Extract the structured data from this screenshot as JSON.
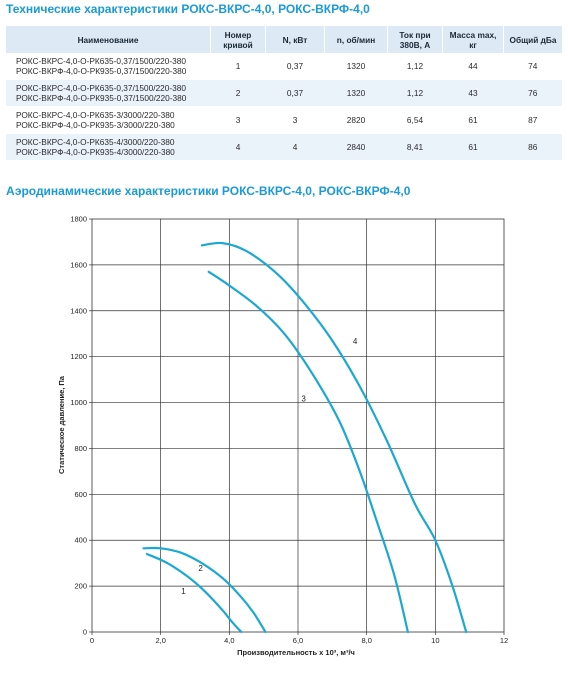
{
  "tech_title": "Технические характеристики РОКС-ВКРС-4,0, РОКС-ВКРФ-4,0",
  "table": {
    "headers": [
      {
        "l1": "Наименование",
        "l2": ""
      },
      {
        "l1": "Номер",
        "l2": "кривой"
      },
      {
        "l1": "N, кВт",
        "l2": ""
      },
      {
        "l1": "n, об/мин",
        "l2": ""
      },
      {
        "l1": "Ток при",
        "l2": "380В, А"
      },
      {
        "l1": "Масса max,",
        "l2": "кг"
      },
      {
        "l1": "Общий дБа",
        "l2": ""
      }
    ],
    "rows": [
      {
        "name1": "РОКС-ВКРС-4,0-О-РК635-0,37/1500/220-380",
        "name2": "РОКС-ВКРФ-4,0-О-РК935-0,37/1500/220-380",
        "curve": "1",
        "power": "0,37",
        "rpm": "1320",
        "current": "1,12",
        "mass": "44",
        "noise": "74"
      },
      {
        "name1": "РОКС-ВКРС-4,0-О-РК635-0,37/1500/220-380",
        "name2": "РОКС-ВКРФ-4,0-О-РК935-0,37/1500/220-380",
        "curve": "2",
        "power": "0,37",
        "rpm": "1320",
        "current": "1,12",
        "mass": "43",
        "noise": "76"
      },
      {
        "name1": "РОКС-ВКРС-4,0-О-РК635-3/3000/220-380",
        "name2": "РОКС-ВКРФ-4,0-О-РК935-3/3000/220-380",
        "curve": "3",
        "power": "3",
        "rpm": "2820",
        "current": "6,54",
        "mass": "61",
        "noise": "87"
      },
      {
        "name1": "РОКС-ВКРС-4,0-О-РК635-4/3000/220-380",
        "name2": "РОКС-ВКРФ-4,0-О-РК935-4/3000/220-380",
        "curve": "4",
        "power": "4",
        "rpm": "2840",
        "current": "8,41",
        "mass": "61",
        "noise": "86"
      }
    ]
  },
  "chart_data": {
    "type": "line",
    "title": "Аэродинамические характеристики РОКС-ВКРС-4,0, РОКС-ВКРФ-4,0",
    "xlabel": "Производительность х 10³, м³/ч",
    "ylabel": "Статическое давление, Па",
    "xlim": [
      0,
      12
    ],
    "ylim": [
      0,
      1800
    ],
    "xticks": [
      0,
      2,
      4,
      6,
      8,
      10,
      12
    ],
    "xtick_labels": [
      "0",
      "2,0",
      "4,0",
      "6,0",
      "8,0",
      "10",
      "12"
    ],
    "yticks": [
      0,
      200,
      400,
      600,
      800,
      1000,
      1200,
      1400,
      1600,
      1800
    ],
    "ytick_labels": [
      "0",
      "200",
      "400",
      "600",
      "800",
      "1000",
      "1200",
      "1400",
      "1600",
      "1800"
    ],
    "grid": true,
    "line_color": "#1ba8d2",
    "series": [
      {
        "name": "1",
        "label_at": [
          2.6,
          165
        ],
        "points": [
          [
            1.6,
            340
          ],
          [
            2.2,
            300
          ],
          [
            2.8,
            240
          ],
          [
            3.3,
            175
          ],
          [
            3.8,
            95
          ],
          [
            4.1,
            40
          ],
          [
            4.35,
            0
          ]
        ]
      },
      {
        "name": "2",
        "label_at": [
          3.1,
          265
        ],
        "points": [
          [
            1.5,
            365
          ],
          [
            2.0,
            365
          ],
          [
            2.6,
            345
          ],
          [
            3.2,
            300
          ],
          [
            3.8,
            235
          ],
          [
            4.3,
            160
          ],
          [
            4.7,
            85
          ],
          [
            5.05,
            0
          ]
        ]
      },
      {
        "name": "3",
        "label_at": [
          6.1,
          1005
        ],
        "points": [
          [
            3.4,
            1570
          ],
          [
            4.0,
            1510
          ],
          [
            4.8,
            1420
          ],
          [
            5.6,
            1300
          ],
          [
            6.4,
            1130
          ],
          [
            7.2,
            920
          ],
          [
            7.8,
            700
          ],
          [
            8.3,
            480
          ],
          [
            8.8,
            250
          ],
          [
            9.2,
            0
          ]
        ]
      },
      {
        "name": "4",
        "label_at": [
          7.6,
          1255
        ],
        "points": [
          [
            3.2,
            1685
          ],
          [
            3.8,
            1695
          ],
          [
            4.5,
            1660
          ],
          [
            5.4,
            1560
          ],
          [
            6.2,
            1430
          ],
          [
            7.0,
            1270
          ],
          [
            7.8,
            1070
          ],
          [
            8.6,
            830
          ],
          [
            9.4,
            560
          ],
          [
            10.0,
            400
          ],
          [
            10.5,
            200
          ],
          [
            10.9,
            0
          ]
        ]
      }
    ]
  }
}
